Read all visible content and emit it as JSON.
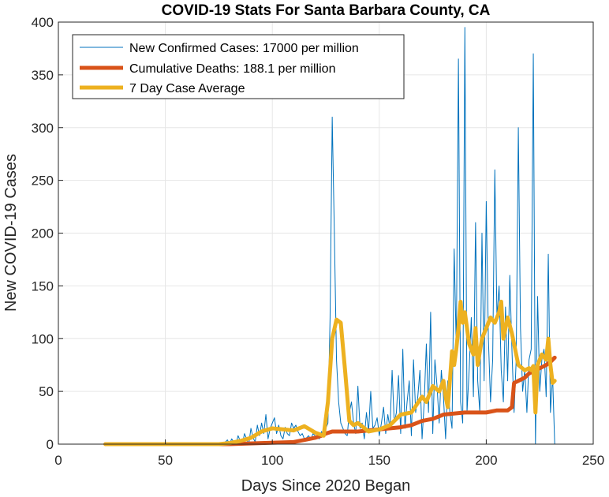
{
  "chart_data": {
    "type": "line",
    "title": "COVID-19 Stats For Santa Barbara County, CA",
    "xlabel": "Days Since 2020 Began",
    "ylabel": "New COVID-19 Cases",
    "xlim": [
      0,
      250
    ],
    "ylim": [
      0,
      400
    ],
    "x_ticks": [
      0,
      50,
      100,
      150,
      200,
      250
    ],
    "y_ticks": [
      0,
      50,
      100,
      150,
      200,
      250,
      300,
      350,
      400
    ],
    "grid": true,
    "legend_position": "top-left",
    "series": [
      {
        "name": "New Confirmed Cases: 17000 per million",
        "color": "#0072BD",
        "line": "thin",
        "x": [
          22,
          30,
          40,
          50,
          60,
          70,
          75,
          77,
          78,
          79,
          80,
          81,
          82,
          83,
          84,
          85,
          86,
          87,
          88,
          89,
          90,
          91,
          92,
          93,
          94,
          95,
          96,
          97,
          98,
          99,
          100,
          101,
          102,
          103,
          104,
          105,
          106,
          107,
          108,
          109,
          110,
          111,
          112,
          113,
          114,
          115,
          116,
          117,
          118,
          119,
          120,
          121,
          122,
          123,
          124,
          125,
          126,
          127,
          128,
          129,
          130,
          131,
          132,
          133,
          134,
          135,
          136,
          137,
          138,
          139,
          140,
          141,
          142,
          143,
          144,
          145,
          146,
          147,
          148,
          149,
          150,
          151,
          152,
          153,
          154,
          155,
          156,
          157,
          158,
          159,
          160,
          161,
          162,
          163,
          164,
          165,
          166,
          167,
          168,
          169,
          170,
          171,
          172,
          173,
          174,
          175,
          176,
          177,
          178,
          179,
          180,
          181,
          182,
          183,
          184,
          185,
          186,
          187,
          188,
          189,
          190,
          191,
          192,
          193,
          194,
          195,
          196,
          197,
          198,
          199,
          200,
          201,
          202,
          203,
          204,
          205,
          206,
          207,
          208,
          209,
          210,
          211,
          212,
          213,
          214,
          215,
          216,
          217,
          218,
          219,
          220,
          221,
          222,
          223,
          224,
          225,
          226,
          227,
          228,
          229,
          230,
          231,
          232
        ],
        "values": [
          0,
          0,
          0,
          0,
          0,
          0,
          0,
          0,
          2,
          4,
          0,
          5,
          2,
          0,
          8,
          3,
          0,
          10,
          5,
          0,
          15,
          6,
          2,
          18,
          8,
          20,
          10,
          28,
          5,
          15,
          20,
          25,
          10,
          18,
          8,
          5,
          16,
          10,
          8,
          20,
          15,
          18,
          12,
          8,
          10,
          5,
          6,
          8,
          4,
          10,
          8,
          6,
          5,
          12,
          8,
          15,
          20,
          120,
          310,
          200,
          80,
          40,
          20,
          15,
          10,
          8,
          30,
          40,
          20,
          10,
          55,
          15,
          20,
          5,
          30,
          12,
          50,
          15,
          18,
          25,
          8,
          20,
          35,
          10,
          28,
          15,
          70,
          20,
          30,
          65,
          10,
          90,
          15,
          40,
          60,
          8,
          80,
          30,
          45,
          70,
          5,
          40,
          95,
          30,
          125,
          10,
          80,
          55,
          20,
          70,
          45,
          5,
          60,
          30,
          15,
          185,
          90,
          365,
          40,
          20,
          395,
          30,
          70,
          120,
          45,
          210,
          60,
          30,
          200,
          60,
          230,
          100,
          40,
          80,
          260,
          120,
          150,
          70,
          40,
          130,
          60,
          160,
          90,
          30,
          80,
          300,
          110,
          50,
          70,
          30,
          80,
          90,
          370,
          0,
          140,
          50,
          80,
          90,
          45,
          180,
          30,
          65,
          0
        ]
      },
      {
        "name": "Cumulative Deaths: 188.1 per million",
        "color": "#D95319",
        "line": "thick",
        "x": [
          22,
          80,
          95,
          110,
          115,
          120,
          123,
          125,
          128,
          140,
          150,
          160,
          165,
          170,
          175,
          180,
          190,
          200,
          205,
          210,
          212,
          213,
          215,
          218,
          220,
          222,
          225,
          228,
          230,
          232
        ],
        "values": [
          0,
          0,
          1,
          2,
          4,
          6,
          8,
          10,
          12,
          12,
          14,
          16,
          18,
          22,
          24,
          28,
          30,
          30,
          32,
          32,
          35,
          58,
          60,
          63,
          67,
          69,
          72,
          75,
          78,
          82
        ]
      },
      {
        "name": "7 Day Case Average",
        "color": "#EDB120",
        "line": "thick",
        "x": [
          22,
          75,
          80,
          85,
          90,
          95,
          100,
          105,
          110,
          115,
          120,
          124,
          126,
          128,
          130,
          132,
          134,
          136,
          138,
          140,
          145,
          150,
          155,
          160,
          165,
          170,
          172,
          175,
          178,
          180,
          181,
          182,
          183,
          184,
          185,
          186,
          187,
          188,
          189,
          190,
          192,
          194,
          195,
          196,
          198,
          200,
          202,
          204,
          206,
          207,
          208,
          210,
          212,
          215,
          218,
          220,
          221,
          222,
          223,
          224,
          225,
          226,
          228,
          229,
          230,
          231,
          232
        ],
        "values": [
          0,
          0,
          1,
          3,
          6,
          12,
          15,
          14,
          13,
          17,
          11,
          8,
          40,
          100,
          118,
          115,
          70,
          22,
          18,
          20,
          12,
          14,
          18,
          28,
          30,
          45,
          40,
          55,
          50,
          60,
          45,
          35,
          60,
          88,
          75,
          90,
          110,
          135,
          115,
          125,
          95,
          85,
          110,
          75,
          100,
          110,
          120,
          115,
          125,
          135,
          100,
          120,
          105,
          75,
          70,
          72,
          70,
          74,
          30,
          75,
          80,
          85,
          80,
          100,
          75,
          58,
          60
        ]
      }
    ]
  }
}
